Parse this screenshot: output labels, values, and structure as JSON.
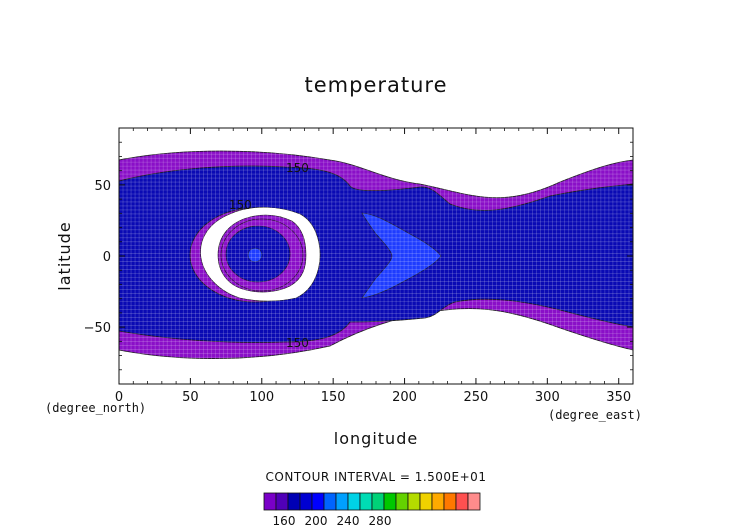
{
  "chart_data": {
    "type": "heatmap",
    "title": "temperature",
    "xlabel": "longitude",
    "ylabel": "latitude",
    "x_units": "(degree_east)",
    "y_units": "(degree_north)",
    "xlim": [
      0,
      360
    ],
    "ylim": [
      -90,
      90
    ],
    "x_ticks": [
      {
        "value": 0,
        "label": "0"
      },
      {
        "value": 50,
        "label": "50"
      },
      {
        "value": 100,
        "label": "100"
      },
      {
        "value": 150,
        "label": "150"
      },
      {
        "value": 200,
        "label": "200"
      },
      {
        "value": 250,
        "label": "250"
      },
      {
        "value": 300,
        "label": "300"
      },
      {
        "value": 350,
        "label": "350"
      }
    ],
    "y_ticks": [
      {
        "value": 50,
        "label": "50"
      },
      {
        "value": 0,
        "label": "0"
      },
      {
        "value": -50,
        "label": "−50"
      }
    ],
    "contour_interval_text": "CONTOUR INTERVAL = 1.500E+01",
    "contour_labels": [
      {
        "text": "150",
        "lon": 125,
        "lat": 62
      },
      {
        "text": "150",
        "lon": 85,
        "lat": 36
      },
      {
        "text": "150",
        "lon": 125,
        "lat": -61
      }
    ],
    "colorbar": {
      "colors": [
        "#7a00c8",
        "#5000b8",
        "#0000b4",
        "#0000d2",
        "#0000ff",
        "#0064ff",
        "#00a0ff",
        "#00d2e6",
        "#00dcb4",
        "#00d278",
        "#00c800",
        "#64d200",
        "#b4dc00",
        "#f0d200",
        "#ffaa00",
        "#ff7800",
        "#ff5050",
        "#ff8c8c"
      ],
      "tick_labels": [
        {
          "value": 160,
          "label": "160"
        },
        {
          "value": 200,
          "label": "200"
        },
        {
          "value": 240,
          "label": "240"
        },
        {
          "value": 280,
          "label": "280"
        }
      ]
    },
    "fill_colors": {
      "background": "#ffffff",
      "level_purple": "#8a0fc8",
      "level_blue": "#0a0ab4",
      "level_light_blue": "#1e3cff",
      "contour_line": "#1a1a1a"
    }
  }
}
